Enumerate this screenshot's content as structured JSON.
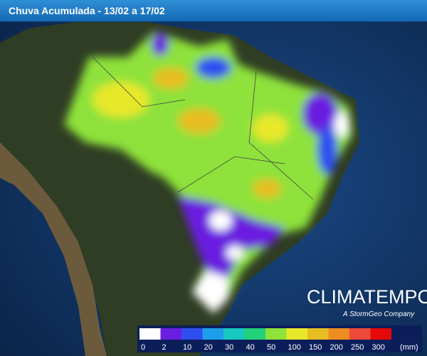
{
  "header": {
    "title": "Chuva Acumulada - 13/02 a 17/02"
  },
  "brand": {
    "name": "CLIMATEMPO",
    "tagline": "A StormGeo Company"
  },
  "legend": {
    "unit": "(mm)",
    "bins": [
      {
        "label": "0",
        "color": "#ffffff"
      },
      {
        "label": "2",
        "color": "#6a1ee0"
      },
      {
        "label": "10",
        "color": "#2f4ef0"
      },
      {
        "label": "20",
        "color": "#1e9ee8"
      },
      {
        "label": "30",
        "color": "#16c8c0"
      },
      {
        "label": "40",
        "color": "#22d27a"
      },
      {
        "label": "50",
        "color": "#8ee23a"
      },
      {
        "label": "100",
        "color": "#e8e82a"
      },
      {
        "label": "150",
        "color": "#e6be22"
      },
      {
        "label": "200",
        "color": "#ee8c22"
      },
      {
        "label": "250",
        "color": "#ee4a3a"
      },
      {
        "label": "300",
        "color": "#e40a0a"
      }
    ]
  }
}
